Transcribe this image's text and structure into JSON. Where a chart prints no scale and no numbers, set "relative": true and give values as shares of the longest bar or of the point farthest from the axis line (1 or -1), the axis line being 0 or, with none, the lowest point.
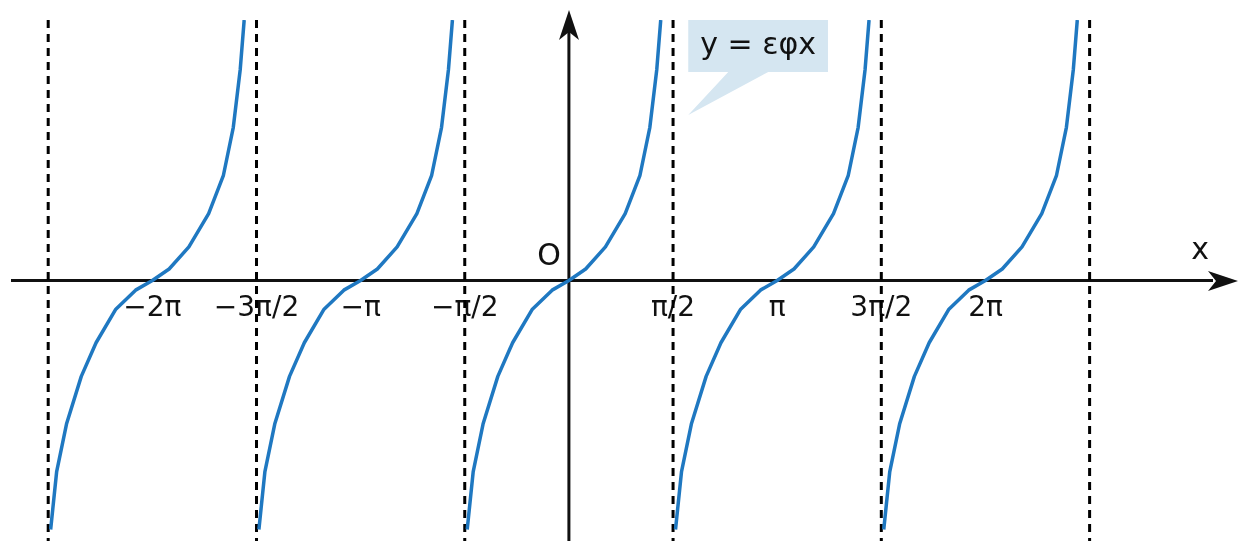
{
  "chart_data": {
    "type": "line",
    "relative": true,
    "xlabel": "x",
    "annotations": [
      {
        "text": "O",
        "x": 0,
        "y": 0
      },
      "y = εφx"
    ],
    "xlim": [
      -8.4,
      9.7
    ],
    "xticks": [
      {
        "value": -6.283,
        "label": "−2π"
      },
      {
        "value": -4.712,
        "label": "−3π/2"
      },
      {
        "value": -3.142,
        "label": "−π"
      },
      {
        "value": -1.571,
        "label": "−π/2"
      },
      {
        "value": 1.571,
        "label": "π/2"
      },
      {
        "value": 3.142,
        "label": "π"
      },
      {
        "value": 4.712,
        "label": "3π/2"
      },
      {
        "value": 6.283,
        "label": "2π"
      }
    ],
    "tick_labels": "x",
    "grid": false,
    "legend": false,
    "marker": "none",
    "line_style": "solid",
    "ref_lines": [
      {
        "axis": "x",
        "value": -7.854,
        "color": "#000000",
        "line_style": "dashed"
      },
      {
        "axis": "x",
        "value": -4.712,
        "color": "#000000",
        "line_style": "dashed"
      },
      {
        "axis": "x",
        "value": -1.571,
        "color": "#000000",
        "line_style": "dashed"
      },
      {
        "axis": "x",
        "value": 1.571,
        "color": "#000000",
        "line_style": "dashed"
      },
      {
        "axis": "x",
        "value": 4.712,
        "color": "#000000",
        "line_style": "dashed"
      },
      {
        "axis": "x",
        "value": 7.854,
        "color": "#000000",
        "line_style": "dashed"
      }
    ],
    "series": [
      {
        "color": "#1f78c1",
        "x": [
          -7.817,
          -7.727,
          -7.578,
          -7.355,
          -7.132,
          -6.834,
          -6.536,
          -6.283,
          -6.03,
          -5.732,
          -5.434,
          -5.211,
          -5.062,
          -4.958,
          -4.898
        ],
        "values": [
          -0.956,
          -0.735,
          -0.551,
          -0.368,
          -0.239,
          -0.11,
          -0.037,
          0,
          0.044,
          0.129,
          0.257,
          0.404,
          0.588,
          0.809,
          1
        ]
      },
      {
        "color": "#1f78c1",
        "x": [
          -4.676,
          -4.586,
          -4.437,
          -4.214,
          -3.991,
          -3.693,
          -3.395,
          -3.142,
          -2.889,
          -2.591,
          -2.293,
          -2.07,
          -1.921,
          -1.817,
          -1.757
        ],
        "values": [
          -0.956,
          -0.735,
          -0.551,
          -0.368,
          -0.239,
          -0.11,
          -0.037,
          0,
          0.044,
          0.129,
          0.257,
          0.404,
          0.588,
          0.809,
          1
        ]
      },
      {
        "color": "#1f78c1",
        "x": [
          -1.534,
          -1.444,
          -1.295,
          -1.072,
          -0.849,
          -0.551,
          -0.253,
          0,
          0.253,
          0.551,
          0.849,
          1.072,
          1.221,
          1.325,
          1.385
        ],
        "values": [
          -0.956,
          -0.735,
          -0.551,
          -0.368,
          -0.239,
          -0.11,
          -0.037,
          0,
          0.044,
          0.129,
          0.257,
          0.404,
          0.588,
          0.809,
          1
        ]
      },
      {
        "color": "#1f78c1",
        "x": [
          1.608,
          1.698,
          1.847,
          2.07,
          2.293,
          2.591,
          2.889,
          3.142,
          3.395,
          3.693,
          3.991,
          4.214,
          4.363,
          4.467,
          4.527
        ],
        "values": [
          -0.956,
          -0.735,
          -0.551,
          -0.368,
          -0.239,
          -0.11,
          -0.037,
          0,
          0.044,
          0.129,
          0.257,
          0.404,
          0.588,
          0.809,
          1
        ]
      },
      {
        "color": "#1f78c1",
        "x": [
          4.749,
          4.839,
          4.988,
          5.211,
          5.434,
          5.732,
          6.03,
          6.283,
          6.536,
          6.834,
          7.132,
          7.355,
          7.504,
          7.608,
          7.668
        ],
        "values": [
          -0.956,
          -0.735,
          -0.551,
          -0.368,
          -0.239,
          -0.11,
          -0.037,
          0,
          0.044,
          0.129,
          0.257,
          0.404,
          0.588,
          0.809,
          1
        ]
      }
    ]
  }
}
